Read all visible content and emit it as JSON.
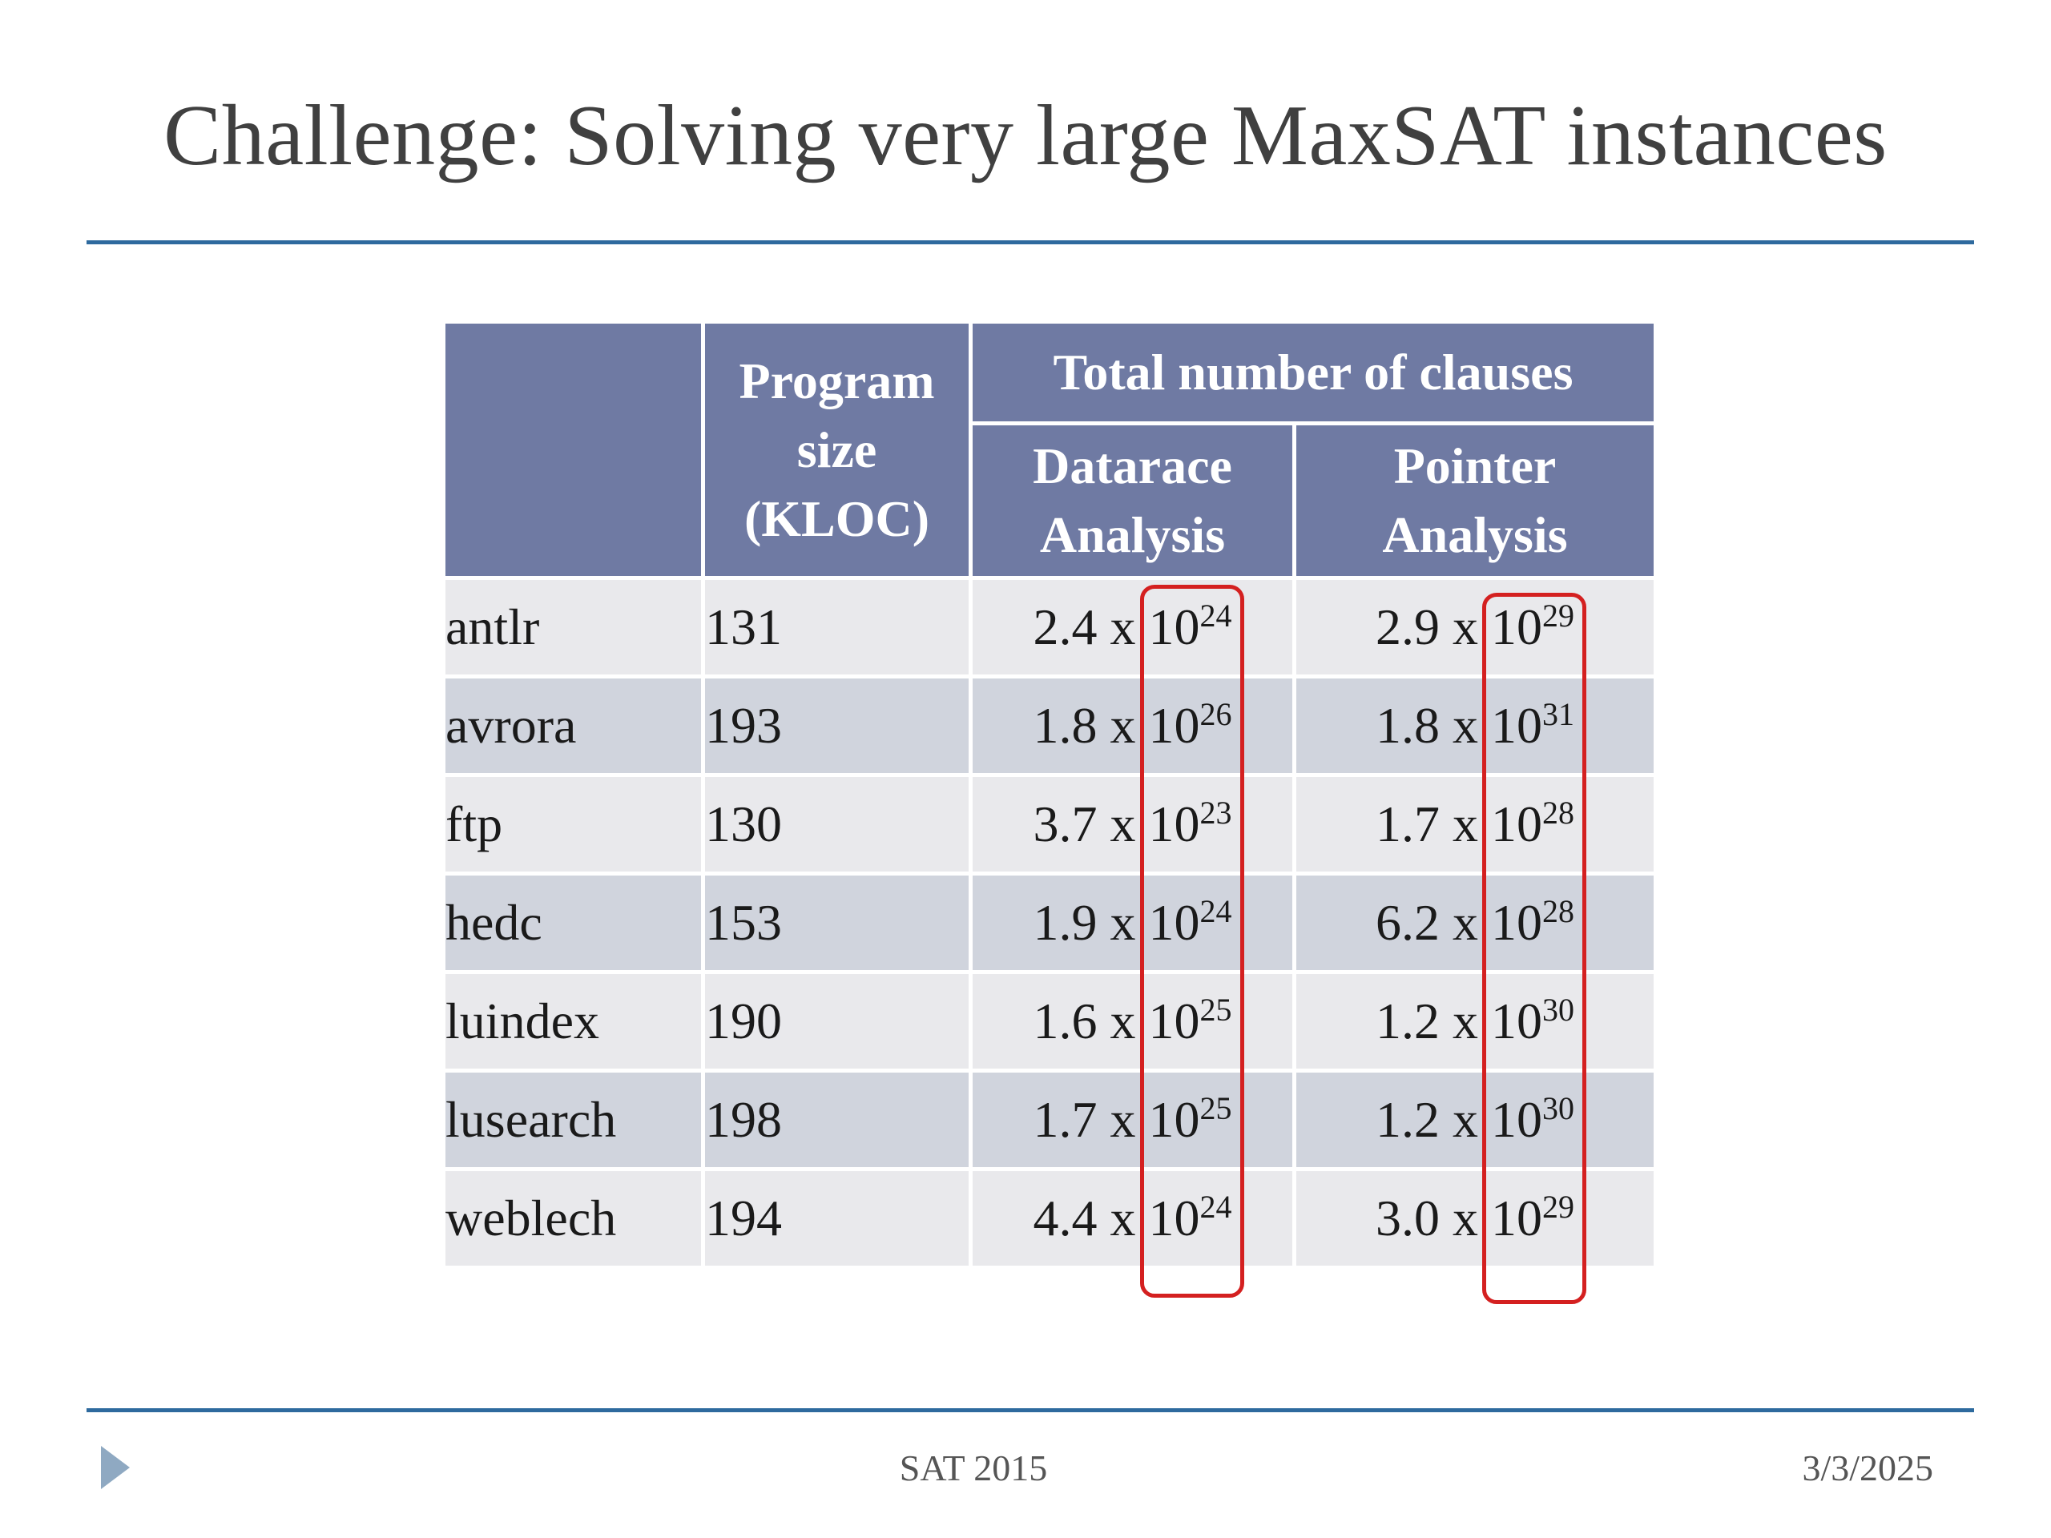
{
  "slide": {
    "title": "Challenge: Solving very large MaxSAT instances"
  },
  "table": {
    "header": {
      "program_size": "Program size (KLOC)",
      "total_clauses": "Total number of  clauses",
      "datarace": "Datarace Analysis",
      "pointer": "Pointer Analysis"
    },
    "rows": [
      {
        "name": "antlr",
        "kloc": "131",
        "datarace_mant": "2.4 x 10",
        "datarace_exp": "24",
        "pointer_mant": "2.9 x 10",
        "pointer_exp": "29"
      },
      {
        "name": "avrora",
        "kloc": "193",
        "datarace_mant": "1.8 x 10",
        "datarace_exp": "26",
        "pointer_mant": "1.8 x 10",
        "pointer_exp": "31"
      },
      {
        "name": "ftp",
        "kloc": "130",
        "datarace_mant": "3.7 x 10",
        "datarace_exp": "23",
        "pointer_mant": "1.7 x 10",
        "pointer_exp": "28"
      },
      {
        "name": "hedc",
        "kloc": "153",
        "datarace_mant": "1.9 x 10",
        "datarace_exp": "24",
        "pointer_mant": "6.2 x 10",
        "pointer_exp": "28"
      },
      {
        "name": "luindex",
        "kloc": "190",
        "datarace_mant": "1.6 x 10",
        "datarace_exp": "25",
        "pointer_mant": "1.2 x 10",
        "pointer_exp": "30"
      },
      {
        "name": "lusearch",
        "kloc": "198",
        "datarace_mant": "1.7 x 10",
        "datarace_exp": "25",
        "pointer_mant": "1.2 x 10",
        "pointer_exp": "30"
      },
      {
        "name": "weblech",
        "kloc": "194",
        "datarace_mant": "4.4 x 10",
        "datarace_exp": "24",
        "pointer_mant": "3.0 x 10",
        "pointer_exp": "29"
      }
    ]
  },
  "footer": {
    "center": "SAT 2015",
    "date": "3/3/2025"
  },
  "colors": {
    "rule": "#2e6a9e",
    "header_bg": "#6f7aa3",
    "row_light": "#e9e9ec",
    "row_dark": "#d0d4dd",
    "highlight": "#d42020"
  }
}
